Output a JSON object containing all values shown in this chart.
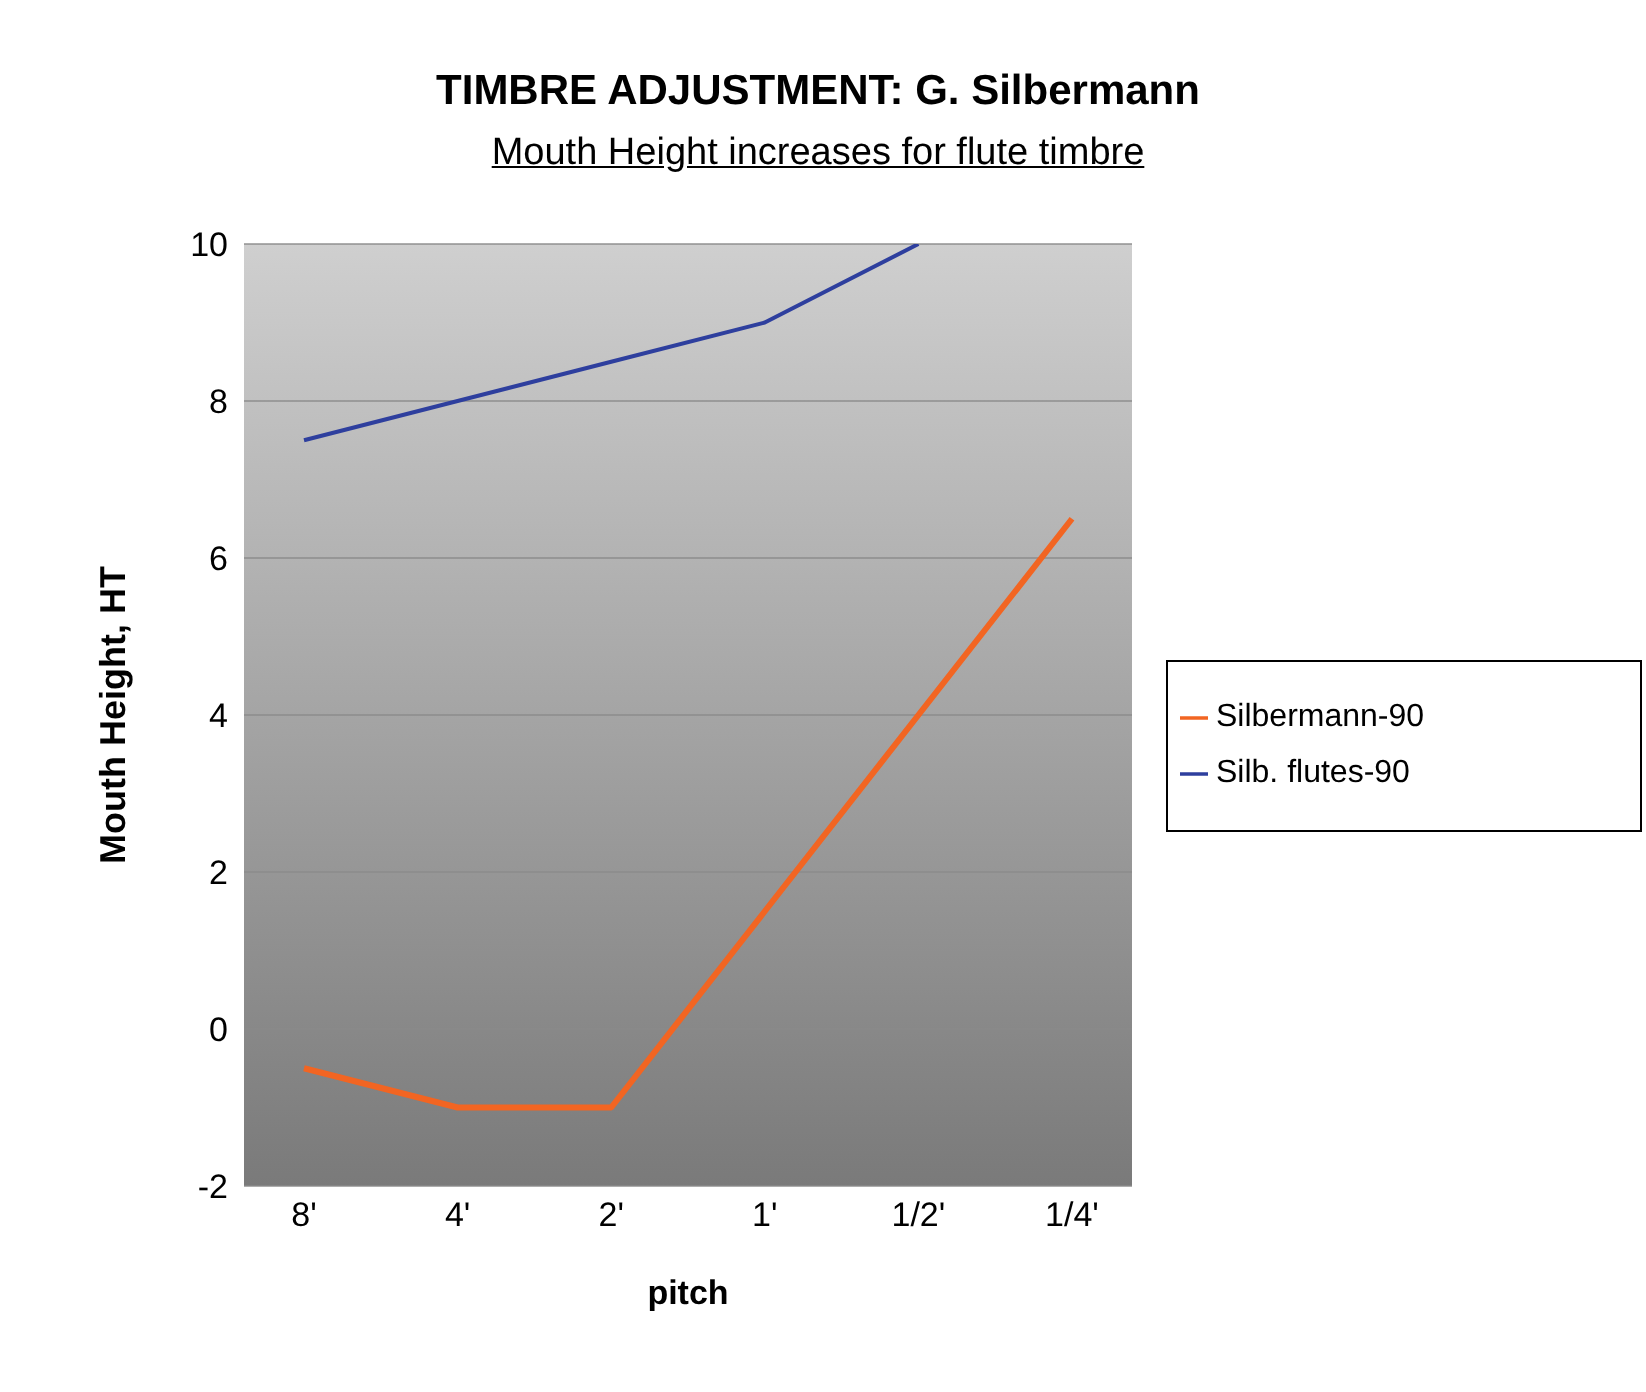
{
  "chart_data": {
    "type": "line",
    "title": "TIMBRE ADJUSTMENT: G. Silbermann",
    "subtitle": "Mouth Height increases for flute timbre",
    "xlabel": "pitch",
    "ylabel": "Mouth Height, HT",
    "categories": [
      "8'",
      "4'",
      "2'",
      "1'",
      "1/2'",
      "1/4'"
    ],
    "series": [
      {
        "name": "Silbermann-90",
        "color": "#f26522",
        "values": [
          -0.5,
          -1,
          -1,
          1.5,
          4,
          6.5
        ]
      },
      {
        "name": "Silb. flutes-90",
        "color": "#2e3f9e",
        "values": [
          7.5,
          8,
          8.5,
          9,
          10,
          null
        ]
      }
    ],
    "ylim": [
      -2,
      10
    ],
    "yticks": [
      -2,
      0,
      2,
      4,
      6,
      8,
      10
    ],
    "grid": "y",
    "legend": "right",
    "marker": "none",
    "line_style": "solid"
  }
}
